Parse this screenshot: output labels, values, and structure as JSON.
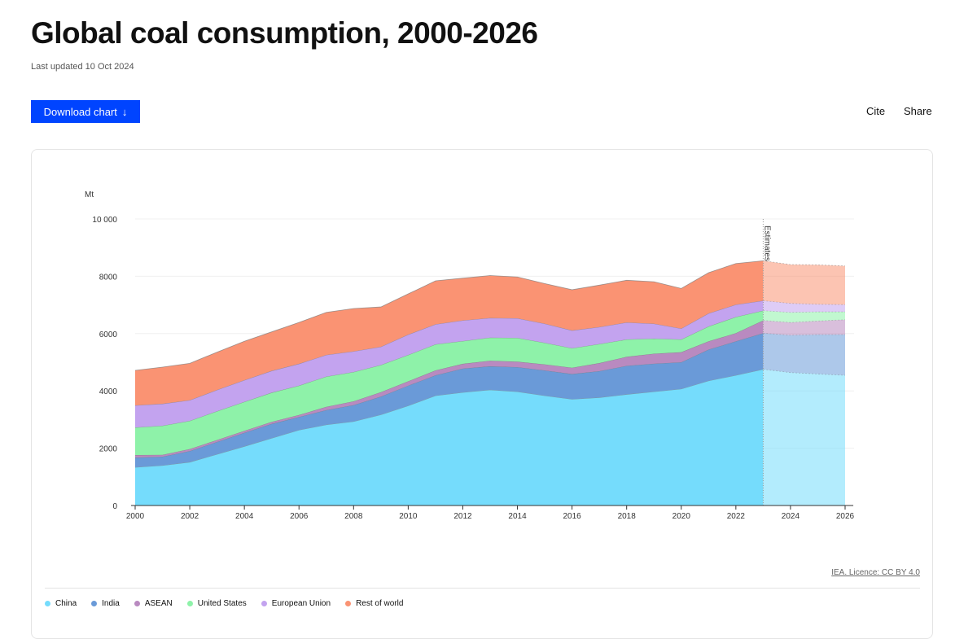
{
  "title": "Global coal consumption, 2000-2026",
  "updated": "Last updated 10 Oct 2024",
  "toolbar": {
    "download": "Download chart",
    "download_icon": "arrow-down-icon",
    "cite": "Cite",
    "share": "Share"
  },
  "licence": "IEA. Licence: CC BY 4.0",
  "chart_data": {
    "type": "area",
    "stacked": true,
    "ylabel": "Mt",
    "ylim": [
      0,
      10000
    ],
    "yticks": [
      0,
      2000,
      4000,
      6000,
      8000,
      10000
    ],
    "ytick_labels": [
      "0",
      "2000",
      "4000",
      "6000",
      "8000",
      "10 000"
    ],
    "xticks": [
      2000,
      2002,
      2004,
      2006,
      2008,
      2010,
      2012,
      2014,
      2016,
      2018,
      2020,
      2022,
      2024,
      2026
    ],
    "grid": true,
    "legend_position": "bottom",
    "annotation": {
      "label": "Estimates",
      "x": 2023
    },
    "x": [
      2000,
      2001,
      2002,
      2003,
      2004,
      2005,
      2006,
      2007,
      2008,
      2009,
      2010,
      2011,
      2012,
      2013,
      2014,
      2015,
      2016,
      2017,
      2018,
      2019,
      2020,
      2021,
      2022,
      2023,
      2024,
      2025,
      2026
    ],
    "series": [
      {
        "name": "China",
        "color": "#75dcfc",
        "values": [
          1335,
          1400,
          1515,
          1790,
          2065,
          2350,
          2635,
          2820,
          2935,
          3170,
          3485,
          3835,
          3950,
          4040,
          3975,
          3835,
          3710,
          3770,
          3880,
          3975,
          4070,
          4355,
          4545,
          4755,
          4640,
          4590,
          4545
        ]
      },
      {
        "name": "India",
        "color": "#6a9ad8",
        "values": [
          340,
          305,
          385,
          430,
          475,
          500,
          455,
          510,
          570,
          635,
          700,
          710,
          830,
          820,
          855,
          880,
          880,
          920,
          995,
          975,
          930,
          1090,
          1185,
          1260,
          1305,
          1375,
          1420
        ]
      },
      {
        "name": "ASEAN",
        "color": "#b98ac0",
        "values": [
          85,
          65,
          70,
          68,
          65,
          70,
          70,
          115,
          130,
          150,
          150,
          170,
          165,
          195,
          190,
          210,
          220,
          280,
          315,
          350,
          350,
          285,
          285,
          445,
          445,
          475,
          520
        ]
      },
      {
        "name": "United States",
        "color": "#8ef2a9",
        "values": [
          965,
          1015,
          985,
          1005,
          1015,
          1020,
          1025,
          1055,
          1025,
          950,
          920,
          910,
          795,
          805,
          830,
          755,
          680,
          665,
          605,
          525,
          445,
          520,
          565,
          340,
          350,
          320,
          275
        ]
      },
      {
        "name": "European Union",
        "color": "#c3a3ef",
        "values": [
          770,
          765,
          720,
          740,
          755,
          760,
          760,
          755,
          720,
          635,
          710,
          700,
          720,
          685,
          685,
          665,
          620,
          595,
          595,
          520,
          380,
          455,
          430,
          350,
          315,
          265,
          250
        ]
      },
      {
        "name": "Rest of world",
        "color": "#fa9373",
        "values": [
          1220,
          1280,
          1285,
          1320,
          1355,
          1360,
          1445,
          1485,
          1495,
          1390,
          1420,
          1515,
          1475,
          1480,
          1440,
          1400,
          1420,
          1460,
          1470,
          1465,
          1400,
          1420,
          1435,
          1390,
          1355,
          1375,
          1350
        ]
      }
    ]
  }
}
